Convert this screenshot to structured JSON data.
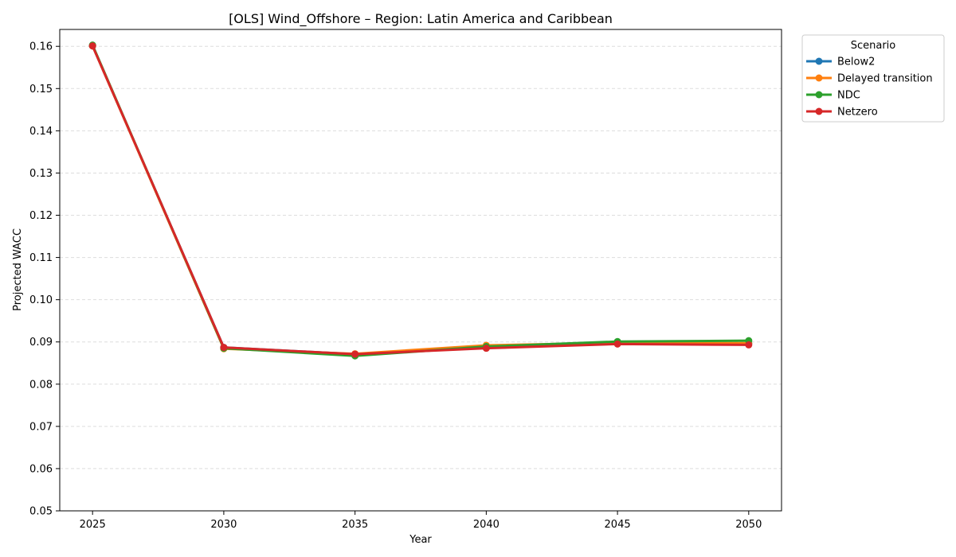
{
  "chart_data": {
    "type": "line",
    "title": "[OLS] Wind_Offshore – Region: Latin America and Caribbean",
    "xlabel": "Year",
    "ylabel": "Projected WACC",
    "x": [
      2025,
      2030,
      2035,
      2040,
      2045,
      2050
    ],
    "x_ticks": [
      "2025",
      "2030",
      "2035",
      "2040",
      "2045",
      "2050"
    ],
    "xlim": [
      2023.75,
      2051.25
    ],
    "ylim": [
      0.05,
      0.164
    ],
    "y_ticks": [
      "0.05",
      "0.06",
      "0.07",
      "0.08",
      "0.09",
      "0.10",
      "0.11",
      "0.12",
      "0.13",
      "0.14",
      "0.15",
      "0.16"
    ],
    "grid": "horizontal-dashed",
    "legend": {
      "title": "Scenario",
      "placement": "outside-top-right"
    },
    "series": [
      {
        "name": "Below2",
        "color": "#1f77b4",
        "values": [
          0.1601,
          0.0887,
          0.0871,
          0.0888,
          0.0897,
          0.0896
        ]
      },
      {
        "name": "Delayed transition",
        "color": "#ff7f0e",
        "values": [
          0.1601,
          0.0884,
          0.0872,
          0.0892,
          0.0898,
          0.0897
        ]
      },
      {
        "name": "NDC",
        "color": "#2ca02c",
        "values": [
          0.1603,
          0.0885,
          0.0867,
          0.0889,
          0.0901,
          0.0903
        ]
      },
      {
        "name": "Netzero",
        "color": "#d62728",
        "values": [
          0.1601,
          0.0887,
          0.0871,
          0.0885,
          0.0895,
          0.0893
        ]
      }
    ]
  }
}
